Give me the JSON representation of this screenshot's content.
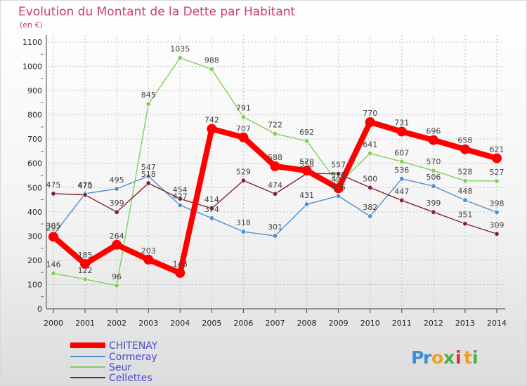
{
  "chart_data": {
    "type": "line",
    "title": "Evolution du Montant de la Dette par Habitant",
    "subtitle": "(en €)",
    "x": [
      "2000",
      "2001",
      "2002",
      "2003",
      "2004",
      "2005",
      "2006",
      "2007",
      "2008",
      "2009",
      "2010",
      "2011",
      "2012",
      "2013",
      "2014"
    ],
    "ylim": [
      0,
      1100
    ],
    "yticks": [
      0,
      100,
      200,
      300,
      400,
      500,
      600,
      700,
      800,
      900,
      1000,
      1100
    ],
    "grid": true,
    "legend_position": "bottom-left",
    "series": [
      {
        "name": "CHITENAY",
        "color": "#ff0000",
        "values": [
          297,
          185,
          264,
          203,
          148,
          742,
          707,
          588,
          570,
          497,
          770,
          731,
          696,
          658,
          621
        ]
      },
      {
        "name": "Cormeray",
        "color": "#4a90d0",
        "values": [
          305,
          475,
          495,
          547,
          427,
          374,
          318,
          301,
          431,
          465,
          382,
          536,
          506,
          448,
          398
        ]
      },
      {
        "name": "Seur",
        "color": "#80d060",
        "values": [
          146,
          122,
          96,
          845,
          1035,
          988,
          791,
          722,
          692,
          515,
          641,
          607,
          570,
          528,
          527
        ]
      },
      {
        "name": "Cellettes",
        "color": "#802030",
        "values": [
          475,
          470,
          399,
          518,
          454,
          414,
          529,
          474,
          558,
          557,
          500,
          447,
          399,
          351,
          309
        ]
      }
    ]
  },
  "logo": {
    "text": "Proxiti",
    "letters": [
      "P",
      "r",
      "o",
      "x",
      "i",
      "t",
      "i"
    ],
    "colors": [
      "#3a8fd8",
      "#3a8fd8",
      "#f0a020",
      "#4ab040",
      "#d83030",
      "#f0a020",
      "#4ab040"
    ]
  }
}
